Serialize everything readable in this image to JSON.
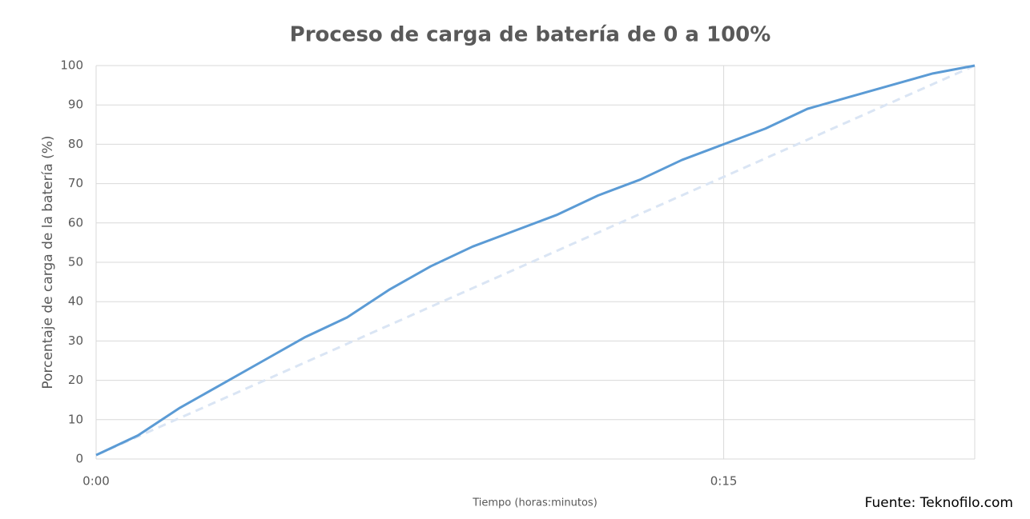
{
  "chart_data": {
    "type": "line",
    "title": "Proceso de carga de batería de 0 a 100%",
    "xlabel": "Tiempo (horas:minutos)",
    "ylabel": "Porcentaje de carga de la batería (%)",
    "source": "Fuente: Teknofilo.com",
    "x": [
      0,
      1,
      2,
      3,
      4,
      5,
      6,
      7,
      8,
      9,
      10,
      11,
      12,
      13,
      14,
      15,
      16,
      17,
      18,
      19,
      20,
      21
    ],
    "series": [
      {
        "color": "#5b9bd5",
        "dashed": false,
        "x": [
          0,
          1,
          2,
          3,
          4,
          5,
          6,
          7,
          8,
          9,
          10,
          11,
          12,
          13,
          14,
          15,
          16,
          17,
          18,
          19,
          20,
          21
        ],
        "values": [
          1,
          6,
          13,
          19,
          25,
          31,
          36,
          43,
          49,
          54,
          58,
          62,
          67,
          71,
          76,
          80,
          84,
          89,
          92,
          95,
          98,
          100
        ]
      },
      {
        "color": "#dae5f4",
        "dashed": true,
        "x": [
          0,
          21
        ],
        "values": [
          1,
          100
        ]
      }
    ],
    "xlim": [
      0,
      21
    ],
    "xticks": [
      {
        "value": 0,
        "label": "0:00"
      },
      {
        "value": 15,
        "label": "0:15"
      }
    ],
    "ylim": [
      0,
      100
    ],
    "yticks": [
      0,
      10,
      20,
      30,
      40,
      50,
      60,
      70,
      80,
      90,
      100
    ],
    "grid": true
  }
}
